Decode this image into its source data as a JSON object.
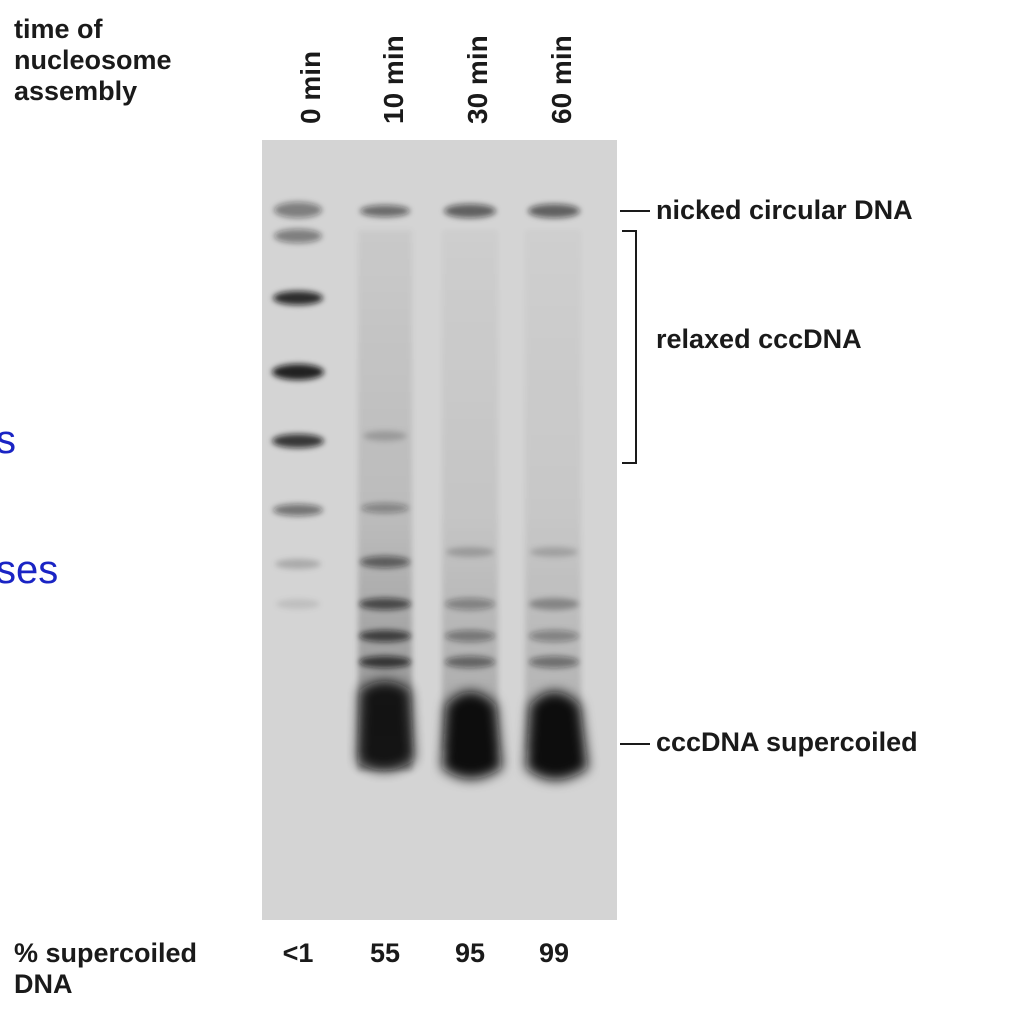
{
  "header": {
    "title_lines": [
      "time of",
      "nucleosome",
      "assembly"
    ]
  },
  "lanes": [
    {
      "label": "0 min",
      "percent_supercoiled": "<1"
    },
    {
      "label": "10 min",
      "percent_supercoiled": "55"
    },
    {
      "label": "30 min",
      "percent_supercoiled": "95"
    },
    {
      "label": "60 min",
      "percent_supercoiled": "99"
    }
  ],
  "band_labels": {
    "nicked": "nicked circular DNA",
    "relaxed": "relaxed cccDNA",
    "supercoiled": "cccDNA supercoiled"
  },
  "footer": {
    "row_label_lines": [
      "% supercoiled",
      "DNA"
    ]
  },
  "overlay_fragments": [
    "s",
    "ses"
  ],
  "colors": {
    "gel_background": "#d4d4d4",
    "band": "#111111",
    "overlay_text": "#1a24c4"
  }
}
